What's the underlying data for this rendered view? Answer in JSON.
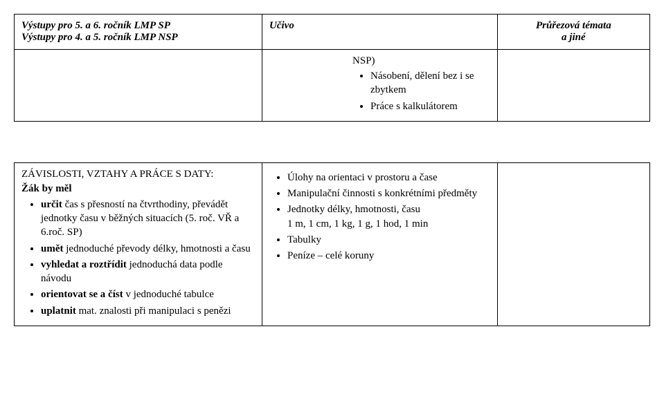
{
  "header": {
    "col1_line1": "Výstupy pro 5. a 6. ročník LMP SP",
    "col1_line2": "Výstupy pro 4. a 5. ročník LMP NSP",
    "col2": "Učivo",
    "col3_line1": "Průřezová témata",
    "col3_line2": "a jiné"
  },
  "row1": {
    "ucivo": {
      "lead": "NSP)",
      "items": [
        "Násobení, dělení bez i se zbytkem",
        "Práce s kalkulátorem"
      ]
    }
  },
  "row2": {
    "vystupy": {
      "title": "ZÁVISLOSTI, VZTAHY A PRÁCE S DATY:",
      "subtitle": "Žák by měl",
      "items": [
        {
          "bold": "určit",
          "rest": " čas s přesností na čtvrthodiny, převádět jednotky času v běžných situacích (5. roč. VŘ a 6.roč. SP)"
        },
        {
          "bold": "umět",
          "rest": " jednoduché převody délky, hmotnosti a času"
        },
        {
          "bold": "vyhledat a roztřídit",
          "rest": " jednoduchá data podle návodu"
        },
        {
          "bold": "orientovat se a číst",
          "rest": " v jednoduché tabulce"
        },
        {
          "bold": "uplatnit",
          "rest": " mat. znalosti při manipulaci s penězi"
        }
      ]
    },
    "ucivo": {
      "items": [
        {
          "text": "Úlohy na orientaci v prostoru a čase"
        },
        {
          "text": "Manipulační činnosti s konkrétními předměty"
        },
        {
          "text": "Jednotky délky, hmotnosti, času",
          "sub": "1 m, 1 cm, 1 kg, 1 g, 1 hod, 1 min"
        },
        {
          "text": "Tabulky"
        },
        {
          "text": "Peníze – celé koruny"
        }
      ]
    }
  }
}
